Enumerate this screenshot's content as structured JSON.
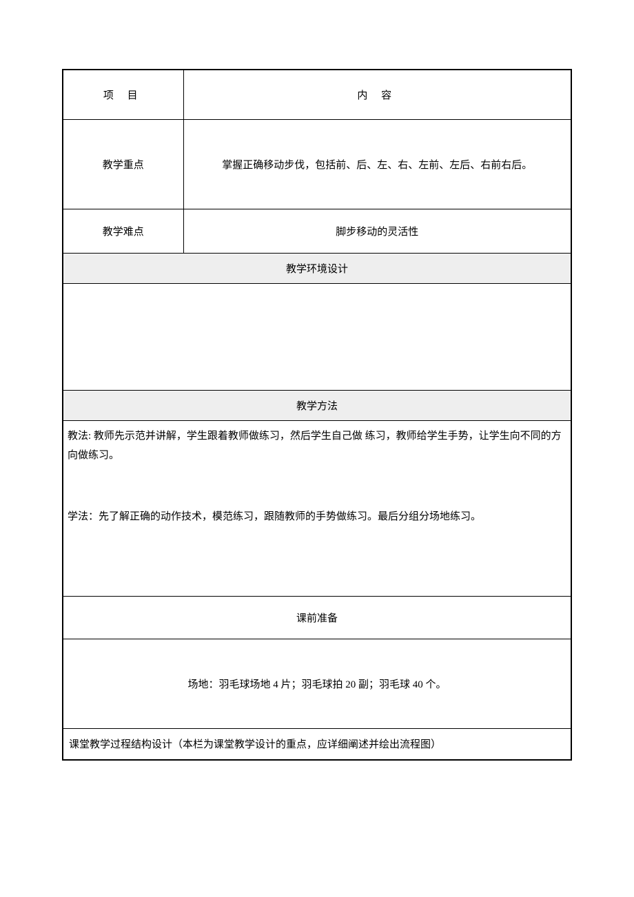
{
  "table": {
    "header": {
      "col1": "项    目",
      "col2": "内        容"
    },
    "rows": {
      "focus": {
        "label": "教学重点",
        "content": "掌握正确移动步伐，包括前、后、左、右、左前、左后、右前右后。"
      },
      "difficulty": {
        "label": "教学难点",
        "content": "脚步移动的灵活性"
      },
      "environment": {
        "header": "教学环境设计"
      },
      "method": {
        "header": "教学方法",
        "teaching": "教法: 教师先示范并讲解，学生跟着教师做练习，然后学生自己做 练习，教师给学生手势，让学生向不同的方向做练习。",
        "learning": "学法：先了解正确的动作技术，模范练习，跟随教师的手势做练习。最后分组分场地练习。"
      },
      "preparation": {
        "header": "课前准备",
        "content": "场地：羽毛球场地 4 片；羽毛球拍 20 副；羽毛球 40 个。"
      },
      "process": {
        "content": "课堂教学过程结构设计（本栏为课堂教学设计的重点，应详细阐述并绘出流程图）"
      }
    }
  },
  "styling": {
    "border_color": "#000000",
    "outer_border_width": 2,
    "inner_border_width": 1,
    "background_color": "#ffffff",
    "shaded_bg": "#eeeeee",
    "text_color": "#000000",
    "font_size": 15,
    "font_family": "SimSun"
  }
}
